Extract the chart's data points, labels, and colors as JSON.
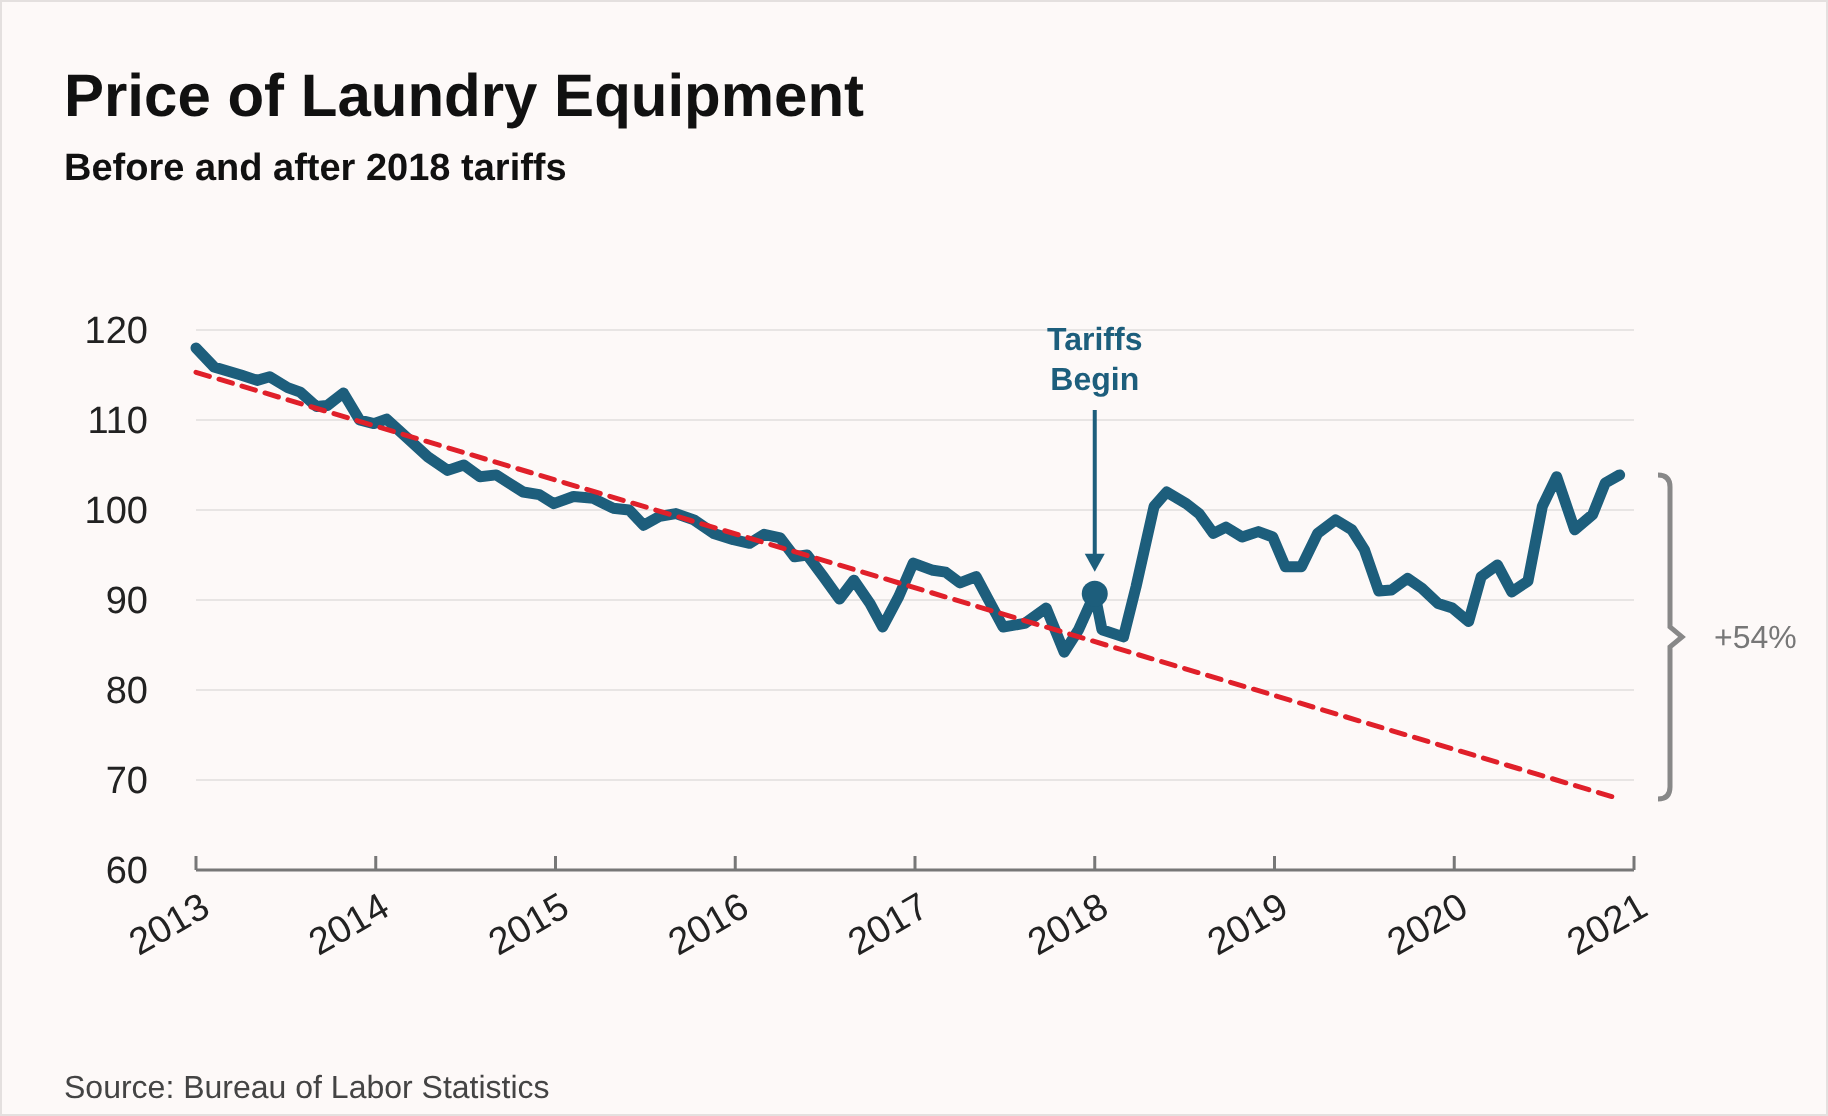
{
  "chart_data": {
    "type": "line",
    "title": "Price of Laundry Equipment",
    "subtitle": "Before and after 2018 tariffs",
    "xlim": [
      2013,
      2021
    ],
    "xticks": [
      2013,
      2014,
      2015,
      2016,
      2017,
      2018,
      2019,
      2020,
      2021
    ],
    "ylim": [
      60,
      120
    ],
    "yticks": [
      60,
      70,
      80,
      90,
      100,
      110,
      120
    ],
    "grid": "y",
    "series": [
      {
        "color": "#1d5e7c",
        "line_style": "solid",
        "x": [
          2013.0,
          2013.1,
          2013.25,
          2013.34,
          2013.41,
          2013.51,
          2013.58,
          2013.67,
          2013.73,
          2013.82,
          2013.91,
          2013.99,
          2014.06,
          2014.17,
          2014.29,
          2014.4,
          2014.49,
          2014.58,
          2014.67,
          2014.82,
          2014.91,
          2014.99,
          2015.1,
          2015.21,
          2015.32,
          2015.41,
          2015.49,
          2015.58,
          2015.67,
          2015.77,
          2015.88,
          2015.99,
          2016.08,
          2016.16,
          2016.25,
          2016.33,
          2016.4,
          2016.49,
          2016.58,
          2016.66,
          2016.75,
          2016.82,
          2016.91,
          2016.99,
          2017.1,
          2017.17,
          2017.25,
          2017.34,
          2017.49,
          2017.61,
          2017.73,
          2017.83,
          2017.91,
          2018.0,
          2018.04,
          2018.16,
          2018.23,
          2018.33,
          2018.4,
          2018.51,
          2018.58,
          2018.66,
          2018.73,
          2018.82,
          2018.91,
          2018.99,
          2019.06,
          2019.15,
          2019.24,
          2019.34,
          2019.43,
          2019.5,
          2019.58,
          2019.65,
          2019.74,
          2019.82,
          2019.91,
          2019.99,
          2020.08,
          2020.15,
          2020.24,
          2020.32,
          2020.41,
          2020.49,
          2020.57,
          2020.67,
          2020.77,
          2020.84,
          2020.92
        ],
        "values": [
          118.0,
          115.9,
          115.0,
          114.4,
          114.8,
          113.6,
          113.1,
          111.5,
          111.6,
          113.0,
          110.0,
          109.6,
          110.1,
          108.1,
          105.9,
          104.4,
          105.0,
          103.7,
          103.9,
          102.0,
          101.7,
          100.7,
          101.5,
          101.3,
          100.2,
          100.0,
          98.3,
          99.3,
          99.6,
          98.9,
          97.4,
          96.7,
          96.3,
          97.3,
          96.9,
          94.8,
          95.0,
          92.6,
          90.1,
          92.2,
          89.6,
          87.0,
          90.4,
          94.1,
          93.3,
          93.1,
          91.9,
          92.6,
          87.0,
          87.4,
          89.1,
          84.2,
          86.7,
          90.7,
          86.7,
          85.9,
          91.5,
          100.4,
          102.0,
          100.7,
          99.6,
          97.4,
          98.1,
          97.0,
          97.6,
          97.0,
          93.7,
          93.7,
          97.4,
          98.9,
          97.8,
          95.6,
          91.0,
          91.1,
          92.4,
          91.3,
          89.6,
          89.1,
          87.6,
          92.6,
          93.9,
          90.9,
          92.1,
          100.4,
          103.7,
          97.8,
          99.5,
          103.0,
          103.9
        ]
      },
      {
        "type": "line",
        "color": "#e0202a",
        "line_style": "dashed",
        "x": [
          2013.0,
          2020.92
        ],
        "values": [
          115.3,
          67.9
        ]
      },
      {
        "type": "scatter",
        "color": "#1d5e7c",
        "marker": "circle",
        "x": [
          2018.0
        ],
        "values": [
          90.7
        ]
      }
    ],
    "annotations": [
      "Tariffs Begin",
      "+54%",
      "Source: Bureau of Labor Statistics"
    ]
  }
}
